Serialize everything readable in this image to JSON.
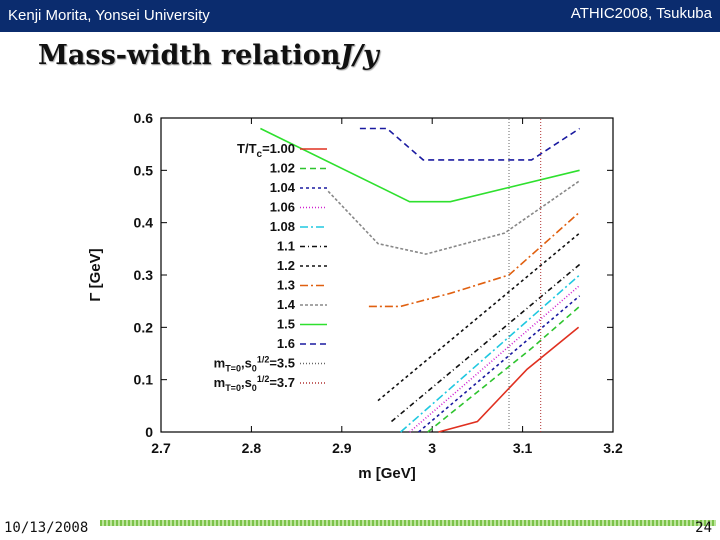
{
  "header": {
    "author": "Kenji Morita, Yonsei University",
    "conference": "ATHIC2008, Tsukuba"
  },
  "slide": {
    "title_main": "Mass-width relation",
    "title_particle": "J/y"
  },
  "footer": {
    "date": "10/13/2008",
    "page": "24"
  },
  "chart_data": {
    "type": "line",
    "xlabel": "m [GeV]",
    "ylabel": "Γ [GeV]",
    "xlim": [
      2.7,
      3.2
    ],
    "ylim": [
      0,
      0.6
    ],
    "xticks": [
      "2.7",
      "2.8",
      "2.9",
      "3",
      "3.1",
      "3.2"
    ],
    "yticks": [
      "0",
      "0.1",
      "0.2",
      "0.3",
      "0.4",
      "0.5",
      "0.6"
    ],
    "legend_location": "top-left",
    "legend_title": "T/Tc=",
    "series": [
      {
        "name": "1.00",
        "label": "T/Tc=1.00",
        "color": "#e03020",
        "dash": "",
        "x": [
          3.007,
          3.05,
          3.105,
          3.162
        ],
        "y": [
          0,
          0.02,
          0.12,
          0.2
        ]
      },
      {
        "name": "1.02",
        "label": "1.02",
        "color": "#2ec42e",
        "dash": "6,4",
        "x": [
          2.995,
          3.11,
          3.163
        ],
        "y": [
          0,
          0.16,
          0.24
        ]
      },
      {
        "name": "1.04",
        "label": "1.04",
        "color": "#1a1aa0",
        "dash": "3,3",
        "x": [
          2.985,
          3.163
        ],
        "y": [
          0,
          0.26
        ]
      },
      {
        "name": "1.06",
        "label": "1.06",
        "color": "#d020d0",
        "dash": "1,2",
        "x": [
          2.975,
          3.163
        ],
        "y": [
          0,
          0.28
        ]
      },
      {
        "name": "1.08",
        "label": "1.08",
        "color": "#20c8e0",
        "dash": "8,3,2,3",
        "x": [
          2.965,
          3.163
        ],
        "y": [
          0,
          0.3
        ]
      },
      {
        "name": "1.1",
        "label": "1.1",
        "color": "#111111",
        "dash": "5,3,1,3",
        "x": [
          2.955,
          3.163
        ],
        "y": [
          0.02,
          0.32
        ]
      },
      {
        "name": "1.2",
        "label": "1.2",
        "color": "#111111",
        "dash": "3,3",
        "x": [
          2.94,
          3.163
        ],
        "y": [
          0.06,
          0.38
        ]
      },
      {
        "name": "1.3",
        "label": "1.3",
        "color": "#e06010",
        "dash": "8,3,2,3",
        "x": [
          2.93,
          2.965,
          3.02,
          3.085,
          3.163
        ],
        "y": [
          0.24,
          0.24,
          0.265,
          0.3,
          0.42
        ]
      },
      {
        "name": "1.4",
        "label": "1.4",
        "color": "#888888",
        "dash": "3,2",
        "x": [
          2.885,
          2.94,
          2.993,
          3.08,
          3.163
        ],
        "y": [
          0.46,
          0.36,
          0.34,
          0.38,
          0.48
        ]
      },
      {
        "name": "1.5",
        "label": "1.5",
        "color": "#2ee02e",
        "dash": "",
        "x": [
          2.81,
          2.975,
          3.02,
          3.163
        ],
        "y": [
          0.58,
          0.44,
          0.44,
          0.5
        ]
      },
      {
        "name": "1.6",
        "label": "1.6",
        "color": "#1a1aa0",
        "dash": "6,4",
        "x": [
          2.92,
          2.95,
          2.99,
          3.11,
          3.163
        ],
        "y": [
          0.58,
          0.58,
          0.52,
          0.52,
          0.58
        ]
      },
      {
        "name": "mT=0,s0^1/2=3.5",
        "label": "mT=0,s01/2=3.5",
        "color": "#666666",
        "dash": "1,2",
        "x": [
          3.085,
          3.085
        ],
        "y": [
          0,
          0.6
        ]
      },
      {
        "name": "mT=0,s0^1/2=3.7",
        "label": "mT=0,s01/2=3.7",
        "color": "#b03030",
        "dash": "1,2",
        "x": [
          3.12,
          3.12
        ],
        "y": [
          0,
          0.6
        ]
      }
    ]
  }
}
